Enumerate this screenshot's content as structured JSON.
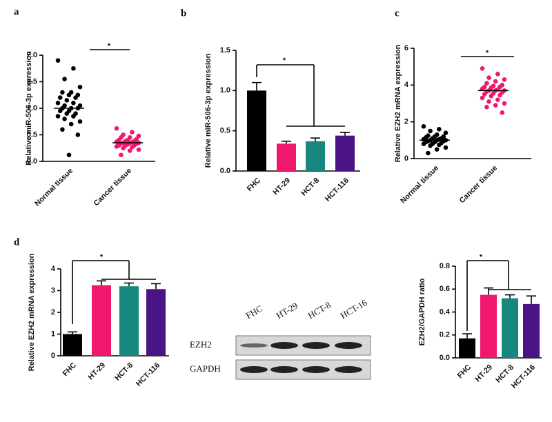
{
  "chart_data": [
    {
      "type": "strip",
      "panel": "a",
      "y_label": "Relative miR-506-3p expression",
      "significance": "*",
      "categories": [
        "Normal tissue",
        "Cancer tissue"
      ],
      "colors": [
        "#000000",
        "#f0186e"
      ],
      "values": [
        [
          1.9,
          1.75,
          1.55,
          1.4,
          1.3,
          1.3,
          1.25,
          1.25,
          1.2,
          1.2,
          1.15,
          1.1,
          1.1,
          1.05,
          1.05,
          1.0,
          1.0,
          1.0,
          0.95,
          0.95,
          0.9,
          0.9,
          0.85,
          0.85,
          0.8,
          0.75,
          0.7,
          0.6,
          0.5,
          0.12
        ],
        [
          0.62,
          0.55,
          0.5,
          0.48,
          0.45,
          0.45,
          0.42,
          0.4,
          0.4,
          0.38,
          0.38,
          0.37,
          0.36,
          0.35,
          0.35,
          0.35,
          0.34,
          0.33,
          0.32,
          0.3,
          0.3,
          0.3,
          0.28,
          0.27,
          0.25,
          0.22,
          0.2,
          0.12
        ]
      ],
      "means": [
        1.0,
        0.35
      ],
      "ylim": [
        0,
        2.0
      ],
      "yticks": [
        {
          "value": 0,
          "label": "0.0"
        },
        0.5,
        {
          "value": 1,
          "label": "1.0"
        },
        1.5,
        {
          "value": 2,
          "label": "2.0"
        }
      ]
    },
    {
      "type": "bar",
      "panel": "b",
      "y_label": "Relative miR-506-3p expression",
      "significance": "*",
      "categories": [
        "FHC",
        "HT-29",
        "HCT-8",
        "HCT-116"
      ],
      "colors": [
        "#000000",
        "#f0186e",
        "#17877e",
        "#4a1487"
      ],
      "values": [
        1.0,
        0.34,
        0.37,
        0.44
      ],
      "errors": [
        0.1,
        0.03,
        0.04,
        0.04
      ],
      "ylim": [
        0,
        1.5
      ],
      "yticks": [
        {
          "value": 0,
          "label": "0.0"
        },
        0.5,
        {
          "value": 1,
          "label": "1.0"
        },
        1.5
      ]
    },
    {
      "type": "strip",
      "panel": "c",
      "y_label": "Relative EZH2 mRNA expression",
      "significance": "*",
      "categories": [
        "Normal tissue",
        "Cancer tissue"
      ],
      "colors": [
        "#000000",
        "#f0186e"
      ],
      "values": [
        [
          1.75,
          1.6,
          1.5,
          1.4,
          1.3,
          1.25,
          1.2,
          1.2,
          1.15,
          1.1,
          1.1,
          1.05,
          1.05,
          1.0,
          1.0,
          1.0,
          0.95,
          0.95,
          0.9,
          0.9,
          0.85,
          0.8,
          0.8,
          0.75,
          0.7,
          0.6,
          0.5,
          0.3
        ],
        [
          4.9,
          4.6,
          4.4,
          4.3,
          4.2,
          4.1,
          4.0,
          3.95,
          3.9,
          3.9,
          3.85,
          3.8,
          3.75,
          3.7,
          3.7,
          3.7,
          3.65,
          3.6,
          3.55,
          3.5,
          3.45,
          3.4,
          3.3,
          3.2,
          3.1,
          3.0,
          2.9,
          2.8,
          2.5
        ]
      ],
      "means": [
        1.0,
        3.7
      ],
      "ylim": [
        0,
        6
      ],
      "yticks": [
        0,
        2,
        4,
        6
      ]
    },
    {
      "type": "bar",
      "panel": "d",
      "y_label": "Relative EZH2 mRNA expression",
      "significance": "*",
      "categories": [
        "FHC",
        "HT-29",
        "HCT-8",
        "HCT-116"
      ],
      "colors": [
        "#000000",
        "#f0186e",
        "#17877e",
        "#4a1487"
      ],
      "values": [
        1.0,
        3.25,
        3.2,
        3.07
      ],
      "errors": [
        0.1,
        0.2,
        0.15,
        0.25
      ],
      "ylim": [
        0,
        4
      ],
      "yticks": [
        0,
        1,
        2,
        3,
        4
      ]
    },
    {
      "type": "blot",
      "lanes": [
        "FHC",
        "HT-29",
        "HCT-8",
        "HCT-16"
      ],
      "rows": [
        "EZH2",
        "GAPDH"
      ]
    },
    {
      "type": "bar",
      "y_label": "EZH2/GAPDH ratio",
      "significance": "*",
      "categories": [
        "FHC",
        "HT-29",
        "HCT-8",
        "HCT-116"
      ],
      "colors": [
        "#000000",
        "#f0186e",
        "#17877e",
        "#4a1487"
      ],
      "values": [
        0.17,
        0.55,
        0.52,
        0.47
      ],
      "errors": [
        0.04,
        0.06,
        0.03,
        0.07
      ],
      "ylim": [
        0,
        0.8
      ],
      "yticks": [
        {
          "value": 0,
          "label": "0.0"
        },
        0.2,
        0.4,
        0.6,
        0.8
      ]
    }
  ]
}
